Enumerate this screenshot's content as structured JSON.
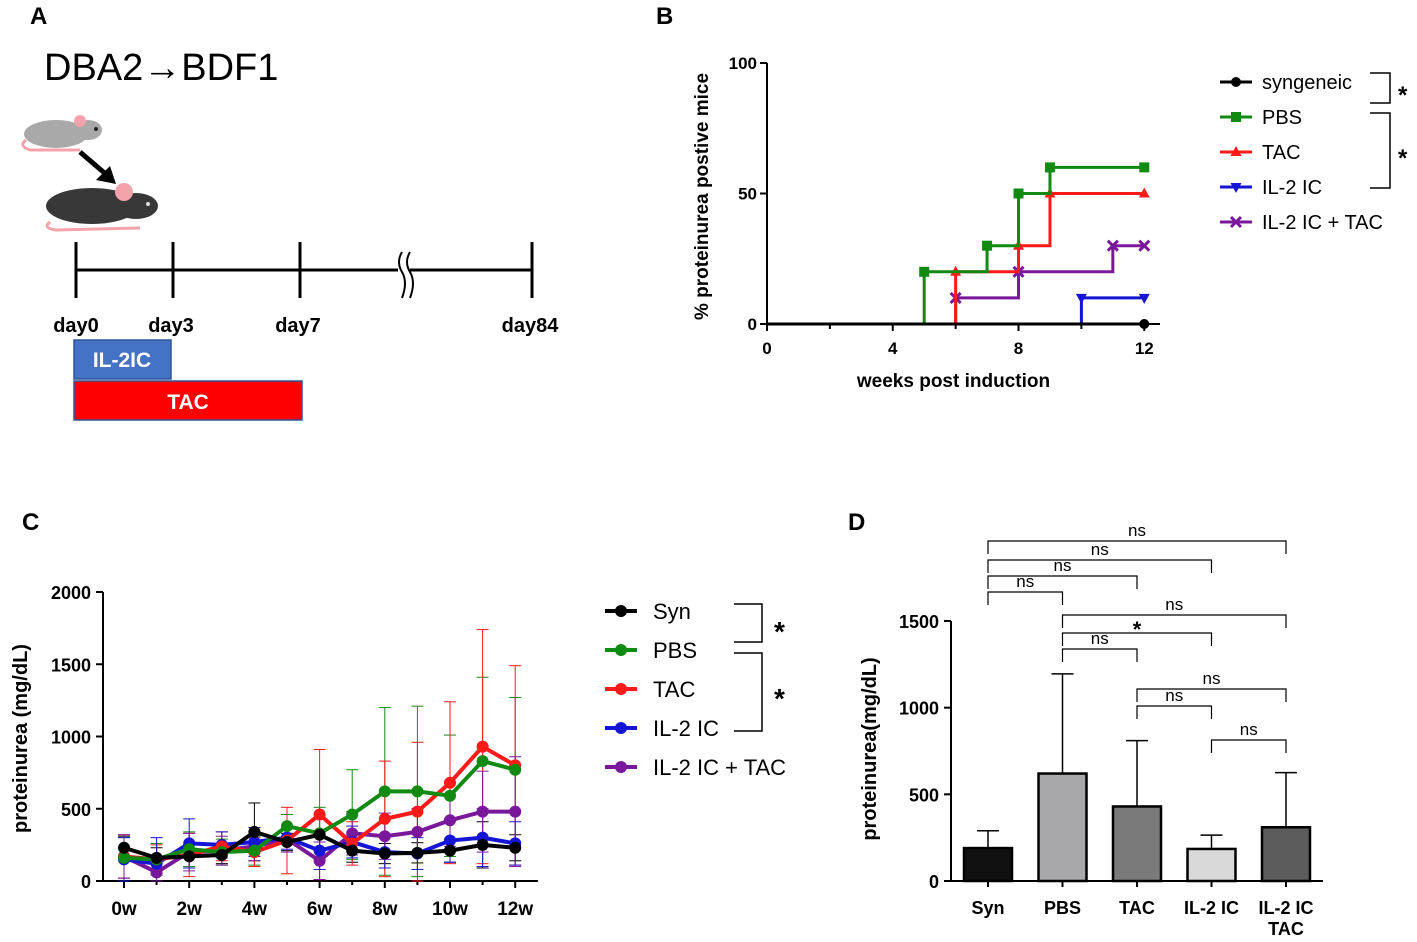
{
  "panel_a": {
    "letter": "A",
    "title": "DBA2→BDF1",
    "days": [
      "day0",
      "day3",
      "day7",
      "day84"
    ],
    "bars": [
      {
        "label": "IL-2IC",
        "color": "#4472c4"
      },
      {
        "label": "TAC",
        "color": "#ff0000"
      }
    ]
  },
  "panel_b": {
    "letter": "B"
  },
  "panel_c": {
    "letter": "C"
  },
  "panel_d": {
    "letter": "D"
  },
  "colors": {
    "black": "#000000",
    "green": "#118a11",
    "red": "#ff1a1a",
    "blue": "#1515d6",
    "purple": "#7a189c"
  },
  "chart_data": [
    {
      "id": "B",
      "type": "line",
      "step": true,
      "xlabel": "weeks post induction",
      "ylabel": "% proteinurea postive mice",
      "xlim": [
        0,
        12.5
      ],
      "ylim": [
        0,
        100
      ],
      "xticks": [
        0,
        4,
        8,
        12
      ],
      "yticks": [
        0,
        50,
        100
      ],
      "series": [
        {
          "name": "syngeneic",
          "color": "#000000",
          "marker": "circle",
          "points": [
            [
              0,
              0
            ],
            [
              12,
              0
            ]
          ]
        },
        {
          "name": "PBS",
          "color": "#118a11",
          "marker": "square",
          "points": [
            [
              0,
              0
            ],
            [
              5,
              20
            ],
            [
              7,
              30
            ],
            [
              8,
              50
            ],
            [
              9,
              60
            ],
            [
              12,
              60
            ]
          ]
        },
        {
          "name": "TAC",
          "color": "#ff1a1a",
          "marker": "triangle",
          "points": [
            [
              0,
              0
            ],
            [
              6,
              20
            ],
            [
              8,
              30
            ],
            [
              9,
              50
            ],
            [
              12,
              50
            ]
          ]
        },
        {
          "name": "IL-2 IC",
          "color": "#1515d6",
          "marker": "triangle-down",
          "points": [
            [
              0,
              0
            ],
            [
              10,
              10
            ],
            [
              12,
              10
            ]
          ]
        },
        {
          "name": "IL-2 IC + TAC",
          "color": "#7a189c",
          "marker": "x",
          "points": [
            [
              0,
              0
            ],
            [
              6,
              10
            ],
            [
              8,
              20
            ],
            [
              11,
              30
            ],
            [
              12,
              30
            ]
          ]
        }
      ],
      "significance": [
        "*",
        "*"
      ]
    },
    {
      "id": "C",
      "type": "line",
      "xlabel": "",
      "ylabel": "proteinurea (mg/dL)",
      "xlim": [
        0,
        12
      ],
      "ylim": [
        0,
        2000
      ],
      "xticks": [
        0,
        2,
        4,
        6,
        8,
        10,
        12
      ],
      "xticklabels": [
        "0w",
        "2w",
        "4w",
        "6w",
        "8w",
        "10w",
        "12w"
      ],
      "yticks": [
        0,
        500,
        1000,
        1500,
        2000
      ],
      "x": [
        0,
        1,
        2,
        3,
        4,
        5,
        6,
        7,
        8,
        9,
        10,
        11,
        12
      ],
      "series": [
        {
          "name": "Syn",
          "color": "#000000",
          "values": [
            230,
            160,
            170,
            180,
            340,
            270,
            320,
            210,
            190,
            195,
            210,
            250,
            230
          ],
          "errors": [
            80,
            70,
            80,
            60,
            200,
            60,
            110,
            80,
            70,
            70,
            80,
            160,
            90
          ]
        },
        {
          "name": "PBS",
          "color": "#118a11",
          "values": [
            160,
            150,
            220,
            200,
            210,
            380,
            330,
            460,
            620,
            620,
            590,
            830,
            770
          ],
          "errors": [
            140,
            110,
            120,
            90,
            100,
            80,
            180,
            310,
            580,
            590,
            420,
            580,
            500
          ]
        },
        {
          "name": "TAC",
          "color": "#ff1a1a",
          "values": [
            170,
            150,
            180,
            240,
            200,
            280,
            460,
            260,
            430,
            480,
            680,
            930,
            800
          ],
          "errors": [
            150,
            100,
            150,
            100,
            100,
            230,
            450,
            150,
            400,
            480,
            560,
            810,
            690
          ]
        },
        {
          "name": "IL-2 IC",
          "color": "#1515d6",
          "values": [
            150,
            120,
            260,
            250,
            270,
            300,
            210,
            270,
            200,
            190,
            280,
            300,
            260
          ],
          "errors": [
            150,
            180,
            170,
            90,
            100,
            80,
            130,
            110,
            110,
            110,
            150,
            200,
            150
          ]
        },
        {
          "name": "IL-2 IC + TAC",
          "color": "#7a189c",
          "values": [
            170,
            60,
            200,
            210,
            240,
            290,
            140,
            330,
            310,
            340,
            420,
            480,
            480
          ],
          "errors": [
            150,
            110,
            130,
            100,
            100,
            90,
            130,
            150,
            160,
            160,
            180,
            280,
            380
          ]
        }
      ],
      "significance": [
        "*",
        "*"
      ]
    },
    {
      "id": "D",
      "type": "bar",
      "ylabel": "proteinurea(mg/dL)",
      "ylim": [
        0,
        1500
      ],
      "yticks": [
        0,
        500,
        1000,
        1500
      ],
      "categories": [
        "Syn",
        "PBS",
        "TAC",
        "IL-2 IC",
        "IL-2 IC\nTAC"
      ],
      "category_lines": [
        [
          "Syn"
        ],
        [
          "PBS"
        ],
        [
          "TAC"
        ],
        [
          "IL-2 IC"
        ],
        [
          "IL-2 IC",
          "TAC"
        ]
      ],
      "values": [
        190,
        620,
        430,
        185,
        310
      ],
      "errors": [
        100,
        575,
        380,
        80,
        315
      ],
      "colors": [
        "#111111",
        "#a8a8ab",
        "#7a7a7a",
        "#d9d9d9",
        "#5c5c5c"
      ],
      "comparisons": [
        {
          "from": 0,
          "to": 4,
          "label": "ns"
        },
        {
          "from": 0,
          "to": 3,
          "label": "ns"
        },
        {
          "from": 0,
          "to": 2,
          "label": "ns"
        },
        {
          "from": 0,
          "to": 1,
          "label": "ns"
        },
        {
          "from": 1,
          "to": 4,
          "label": "ns"
        },
        {
          "from": 1,
          "to": 3,
          "label": "*"
        },
        {
          "from": 1,
          "to": 2,
          "label": "ns"
        },
        {
          "from": 2,
          "to": 4,
          "label": "ns"
        },
        {
          "from": 2,
          "to": 3,
          "label": "ns"
        },
        {
          "from": 3,
          "to": 4,
          "label": "ns"
        }
      ]
    }
  ]
}
